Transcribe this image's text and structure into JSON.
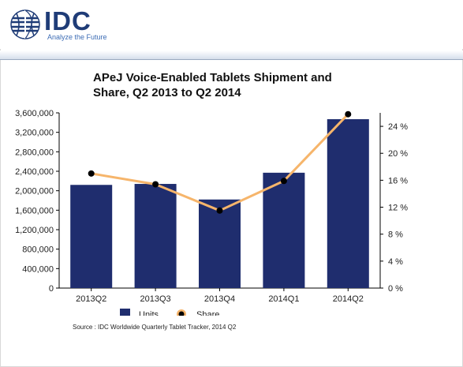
{
  "brand": {
    "logo_text": "IDC",
    "tagline": "Analyze the Future"
  },
  "chart_data": {
    "type": "bar",
    "title": "APeJ Voice-Enabled Tablets Shipment and Share, Q2 2013 to Q2 2014",
    "categories": [
      "2013Q2",
      "2013Q3",
      "2013Q4",
      "2014Q1",
      "2014Q2"
    ],
    "series": [
      {
        "name": "Units",
        "type": "bar",
        "axis": "left",
        "color": "#1f2d6e",
        "values": [
          2120000,
          2140000,
          1820000,
          2370000,
          3470000
        ]
      },
      {
        "name": "Share",
        "type": "line",
        "axis": "right",
        "color": "#f6b56b",
        "marker_color": "#000000",
        "values": [
          17.0,
          15.4,
          11.5,
          15.9,
          25.8
        ]
      }
    ],
    "y_left": {
      "ylim": [
        0,
        3600000
      ],
      "ticks": [
        "0",
        "400,000",
        "800,000",
        "1,200,000",
        "1,600,000",
        "2,000,000",
        "2,400,000",
        "2,800,000",
        "3,200,000",
        "3,600,000"
      ]
    },
    "y_right": {
      "ylim": [
        0,
        26
      ],
      "ticks": [
        "0 %",
        "4 %",
        "8 %",
        "12 %",
        "16 %",
        "20 %",
        "24 %"
      ]
    },
    "legend_position": "bottom",
    "grid": false
  },
  "source": "Source : IDC Worldwide Quarterly Tablet Tracker, 2014 Q2"
}
